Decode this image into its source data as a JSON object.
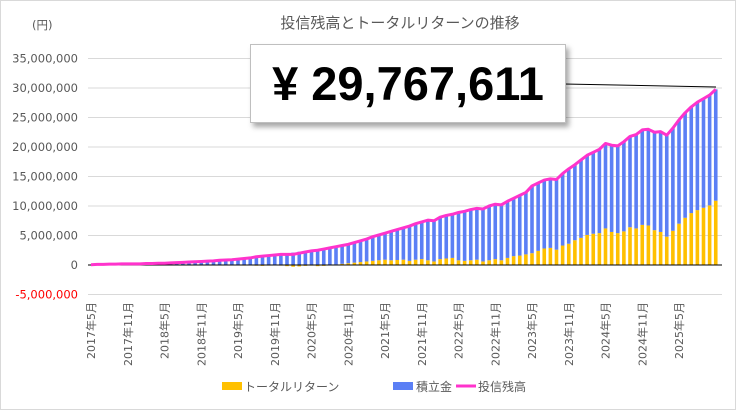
{
  "chart_data": {
    "type": "bar",
    "title": "投信残高とトータルリターンの推移",
    "ylabel": "(円)",
    "xlabel": "",
    "ylim": [
      -5000000,
      35000000
    ],
    "yticks": [
      -5000000,
      0,
      5000000,
      10000000,
      15000000,
      20000000,
      25000000,
      30000000,
      35000000
    ],
    "ytick_labels": [
      "-5,000,000",
      "0",
      "5,000,000",
      "10,000,000",
      "15,000,000",
      "20,000,000",
      "25,000,000",
      "30,000,000",
      "35,000,000"
    ],
    "grid": true,
    "x_start": "2017年5月",
    "x_end": "2025年11月",
    "x_tick_labels": [
      "2017年5月",
      "2017年11月",
      "2018年5月",
      "2018年11月",
      "2019年5月",
      "2019年11月",
      "2020年5月",
      "2020年11月",
      "2021年5月",
      "2021年11月",
      "2022年5月",
      "2022年11月",
      "2023年5月",
      "2023年11月",
      "2024年5月",
      "2024年11月",
      "2025年5月"
    ],
    "unit_note": "values in millions of yen, monthly",
    "legend_position": "bottom",
    "series": [
      {
        "name": "トータルリターン",
        "kind": "bar-stacked",
        "color": "#ffc000",
        "values": [
          0,
          0,
          0,
          0,
          0,
          0,
          0,
          0,
          0.01,
          0.02,
          0.02,
          0.03,
          0.03,
          0.02,
          0.01,
          0,
          -0.02,
          -0.05,
          -0.03,
          0,
          0.02,
          0.01,
          -0.05,
          -0.03,
          -0.05,
          -0.1,
          -0.08,
          -0.12,
          -0.15,
          -0.1,
          -0.05,
          -0.1,
          -0.2,
          -0.3,
          -0.25,
          -0.15,
          -0.1,
          -0.2,
          -0.15,
          -0.05,
          0.1,
          0.2,
          0.3,
          0.4,
          0.5,
          0.6,
          0.7,
          0.8,
          0.9,
          0.8,
          0.85,
          0.9,
          0.7,
          0.9,
          1.0,
          0.8,
          0.6,
          1.0,
          1.1,
          1.2,
          0.8,
          0.7,
          0.8,
          0.9,
          0.6,
          0.8,
          1.0,
          0.8,
          1.2,
          1.5,
          1.6,
          1.8,
          2.0,
          2.4,
          2.8,
          2.9,
          2.6,
          3.3,
          3.6,
          4.2,
          4.6,
          5.1,
          5.3,
          5.4,
          6.2,
          5.6,
          5.4,
          5.7,
          6.4,
          6.2,
          6.8,
          6.7,
          5.9,
          5.6,
          4.8,
          5.8,
          7.0,
          8.0,
          8.8,
          9.3,
          9.7,
          10.1,
          10.9
        ]
      },
      {
        "name": "積立金",
        "kind": "bar-stacked",
        "color": "#5b7ff5",
        "values": [
          0.05,
          0.1,
          0.1,
          0.15,
          0.15,
          0.2,
          0.2,
          0.2,
          0.19,
          0.23,
          0.23,
          0.27,
          0.27,
          0.33,
          0.39,
          0.45,
          0.52,
          0.6,
          0.63,
          0.65,
          0.68,
          0.79,
          0.9,
          0.93,
          1.05,
          1.2,
          1.28,
          1.52,
          1.65,
          1.7,
          1.75,
          1.9,
          2.0,
          2.1,
          2.25,
          2.35,
          2.5,
          2.7,
          2.85,
          2.95,
          3.0,
          3.1,
          3.2,
          3.4,
          3.6,
          3.8,
          4.1,
          4.3,
          4.5,
          4.9,
          5.15,
          5.4,
          5.9,
          6.1,
          6.3,
          6.8,
          6.9,
          7.1,
          7.3,
          7.4,
          8.1,
          8.4,
          8.6,
          8.7,
          8.9,
          9.2,
          9.3,
          9.4,
          9.6,
          9.8,
          10.2,
          10.5,
          11.4,
          11.5,
          11.6,
          11.7,
          11.9,
          12.2,
          12.7,
          12.8,
          13.2,
          13.5,
          13.8,
          14.2,
          14.4,
          14.7,
          14.8,
          15.2,
          15.4,
          15.9,
          16.1,
          16.3,
          16.6,
          17.0,
          17.2,
          17.4,
          17.6,
          17.8,
          18.0,
          18.3,
          18.5,
          18.7,
          18.87
        ]
      },
      {
        "name": "投信残高",
        "kind": "line",
        "color": "#ff33cc",
        "values": [
          0.05,
          0.1,
          0.1,
          0.15,
          0.15,
          0.2,
          0.2,
          0.2,
          0.2,
          0.25,
          0.25,
          0.3,
          0.3,
          0.35,
          0.4,
          0.45,
          0.5,
          0.55,
          0.6,
          0.65,
          0.7,
          0.8,
          0.85,
          0.9,
          1.0,
          1.1,
          1.2,
          1.4,
          1.5,
          1.6,
          1.7,
          1.8,
          1.8,
          1.8,
          2.0,
          2.2,
          2.4,
          2.5,
          2.7,
          2.9,
          3.1,
          3.3,
          3.5,
          3.8,
          4.1,
          4.4,
          4.8,
          5.1,
          5.4,
          5.7,
          6.0,
          6.3,
          6.6,
          7.0,
          7.3,
          7.6,
          7.5,
          8.1,
          8.4,
          8.6,
          8.9,
          9.1,
          9.4,
          9.6,
          9.5,
          10.0,
          10.3,
          10.2,
          10.8,
          11.3,
          11.8,
          12.3,
          13.4,
          13.9,
          14.4,
          14.6,
          14.5,
          15.5,
          16.3,
          17.0,
          17.8,
          18.6,
          19.1,
          19.6,
          20.6,
          20.3,
          20.2,
          20.9,
          21.8,
          22.1,
          22.9,
          23.0,
          22.5,
          22.6,
          22.0,
          23.2,
          24.6,
          25.8,
          26.8,
          27.6,
          28.2,
          28.8,
          29.77
        ]
      }
    ],
    "annotation": "¥ 29,767,611"
  }
}
